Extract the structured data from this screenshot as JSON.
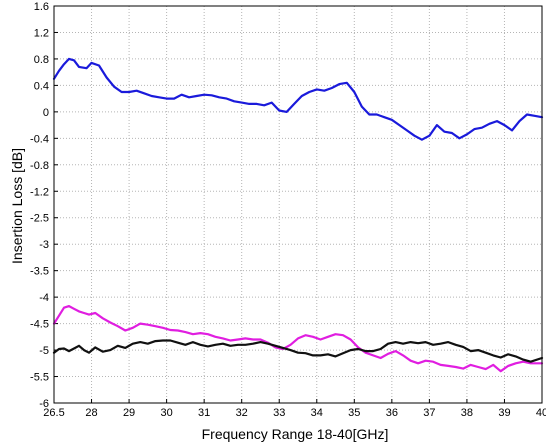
{
  "chart_data": {
    "type": "line",
    "title": "",
    "xlabel": "Frequency Range 18-40[GHz]",
    "ylabel": "Insertion Loss [dB]",
    "xlim": [
      26.5,
      40
    ],
    "grid": true,
    "legend": "none",
    "x_ticks": [
      {
        "v": 26.5,
        "label": "26.5"
      },
      {
        "v": 28,
        "label": "28"
      },
      {
        "v": 29,
        "label": "29"
      },
      {
        "v": 30,
        "label": "30"
      },
      {
        "v": 31,
        "label": "31"
      },
      {
        "v": 32,
        "label": "32"
      },
      {
        "v": 33,
        "label": "33"
      },
      {
        "v": 34,
        "label": "34"
      },
      {
        "v": 35,
        "label": "35"
      },
      {
        "v": 36,
        "label": "36"
      },
      {
        "v": 37,
        "label": "37"
      },
      {
        "v": 38,
        "label": "38"
      },
      {
        "v": 39,
        "label": "39"
      },
      {
        "v": 40,
        "label": "40"
      }
    ],
    "y_ticks": [
      "1.6",
      "1.2",
      "0.8",
      "0.4",
      "0",
      "-0.4",
      "-0.8",
      "-1.2",
      "-2.5",
      "-3",
      "-3.5",
      "-4",
      "-4.5",
      "-5",
      "-5.5",
      "-6"
    ],
    "series": [
      {
        "color": "#1a1adb",
        "x": [
          26.5,
          26.7,
          26.9,
          27.1,
          27.3,
          27.5,
          27.8,
          28.0,
          28.2,
          28.4,
          28.6,
          28.8,
          29.0,
          29.2,
          29.4,
          29.6,
          29.8,
          30.0,
          30.2,
          30.4,
          30.6,
          30.8,
          31.0,
          31.2,
          31.4,
          31.6,
          31.8,
          32.0,
          32.2,
          32.4,
          32.6,
          32.8,
          33.0,
          33.2,
          33.4,
          33.6,
          33.8,
          34.0,
          34.2,
          34.4,
          34.6,
          34.8,
          35.0,
          35.2,
          35.4,
          35.6,
          35.8,
          36.0,
          36.2,
          36.4,
          36.6,
          36.8,
          37.0,
          37.2,
          37.4,
          37.6,
          37.8,
          38.0,
          38.2,
          38.4,
          38.6,
          38.8,
          39.0,
          39.2,
          39.4,
          39.6,
          39.8,
          40.0
        ],
        "y": [
          0.5,
          0.62,
          0.72,
          0.8,
          0.78,
          0.68,
          0.66,
          0.74,
          0.7,
          0.52,
          0.38,
          0.3,
          0.3,
          0.32,
          0.28,
          0.24,
          0.22,
          0.2,
          0.2,
          0.26,
          0.22,
          0.24,
          0.26,
          0.25,
          0.22,
          0.2,
          0.16,
          0.14,
          0.12,
          0.12,
          0.1,
          0.14,
          0.02,
          0.0,
          0.12,
          0.24,
          0.3,
          0.34,
          0.32,
          0.36,
          0.42,
          0.44,
          0.3,
          0.08,
          -0.04,
          -0.04,
          -0.08,
          -0.12,
          -0.2,
          -0.28,
          -0.36,
          -0.42,
          -0.36,
          -0.2,
          -0.3,
          -0.32,
          -0.4,
          -0.34,
          -0.26,
          -0.24,
          -0.18,
          -0.14,
          -0.2,
          -0.28,
          -0.14,
          -0.04,
          -0.06,
          -0.08
        ]
      },
      {
        "color": "#e01ee0",
        "x": [
          26.5,
          26.7,
          26.9,
          27.1,
          27.3,
          27.5,
          27.7,
          27.9,
          28.1,
          28.3,
          28.5,
          28.7,
          28.9,
          29.1,
          29.3,
          29.5,
          29.7,
          29.9,
          30.1,
          30.3,
          30.5,
          30.7,
          30.9,
          31.1,
          31.3,
          31.5,
          31.7,
          31.9,
          32.1,
          32.3,
          32.5,
          32.7,
          32.9,
          33.1,
          33.3,
          33.5,
          33.7,
          33.9,
          34.1,
          34.3,
          34.5,
          34.7,
          34.9,
          35.1,
          35.3,
          35.5,
          35.7,
          35.9,
          36.1,
          36.3,
          36.5,
          36.7,
          36.9,
          37.1,
          37.3,
          37.5,
          37.7,
          37.9,
          38.1,
          38.3,
          38.5,
          38.7,
          38.9,
          39.1,
          39.3,
          39.5,
          39.7,
          40.0
        ],
        "y": [
          -4.5,
          -4.35,
          -4.2,
          -4.17,
          -4.22,
          -4.27,
          -4.3,
          -4.33,
          -4.3,
          -4.4,
          -4.48,
          -4.55,
          -4.63,
          -4.58,
          -4.5,
          -4.52,
          -4.55,
          -4.58,
          -4.62,
          -4.63,
          -4.66,
          -4.7,
          -4.68,
          -4.7,
          -4.75,
          -4.78,
          -4.82,
          -4.8,
          -4.78,
          -4.8,
          -4.8,
          -4.86,
          -4.95,
          -4.98,
          -4.9,
          -4.78,
          -4.72,
          -4.75,
          -4.8,
          -4.75,
          -4.7,
          -4.72,
          -4.8,
          -4.95,
          -5.05,
          -5.1,
          -5.15,
          -5.07,
          -5.02,
          -5.1,
          -5.2,
          -5.25,
          -5.2,
          -5.22,
          -5.28,
          -5.3,
          -5.32,
          -5.35,
          -5.28,
          -5.32,
          -5.36,
          -5.28,
          -5.4,
          -5.3,
          -5.25,
          -5.22,
          -5.25,
          -5.25
        ]
      },
      {
        "color": "#111111",
        "x": [
          26.5,
          26.7,
          26.9,
          27.1,
          27.3,
          27.5,
          27.7,
          27.9,
          28.1,
          28.3,
          28.5,
          28.7,
          28.9,
          29.1,
          29.3,
          29.5,
          29.7,
          29.9,
          30.1,
          30.3,
          30.5,
          30.7,
          30.9,
          31.1,
          31.3,
          31.5,
          31.7,
          31.9,
          32.1,
          32.3,
          32.5,
          32.7,
          32.9,
          33.1,
          33.3,
          33.5,
          33.7,
          33.9,
          34.1,
          34.3,
          34.5,
          34.7,
          34.9,
          35.1,
          35.3,
          35.5,
          35.7,
          35.9,
          36.1,
          36.3,
          36.5,
          36.7,
          36.9,
          37.1,
          37.3,
          37.5,
          37.7,
          37.9,
          38.1,
          38.3,
          38.5,
          38.7,
          38.9,
          39.1,
          39.3,
          39.5,
          39.7,
          40.0
        ],
        "y": [
          -5.05,
          -4.98,
          -4.97,
          -5.02,
          -4.97,
          -4.92,
          -5.0,
          -5.05,
          -4.95,
          -5.03,
          -5.0,
          -4.92,
          -4.96,
          -4.88,
          -4.85,
          -4.88,
          -4.83,
          -4.82,
          -4.82,
          -4.86,
          -4.9,
          -4.85,
          -4.9,
          -4.93,
          -4.9,
          -4.88,
          -4.92,
          -4.9,
          -4.9,
          -4.88,
          -4.85,
          -4.88,
          -4.92,
          -4.96,
          -5.0,
          -5.05,
          -5.06,
          -5.1,
          -5.1,
          -5.08,
          -5.12,
          -5.06,
          -5.0,
          -4.98,
          -5.02,
          -5.02,
          -4.98,
          -4.88,
          -4.85,
          -4.88,
          -4.85,
          -4.87,
          -4.85,
          -4.9,
          -4.88,
          -4.85,
          -4.9,
          -4.94,
          -5.02,
          -5.0,
          -5.05,
          -5.1,
          -5.14,
          -5.08,
          -5.12,
          -5.18,
          -5.22,
          -5.15
        ]
      }
    ]
  }
}
